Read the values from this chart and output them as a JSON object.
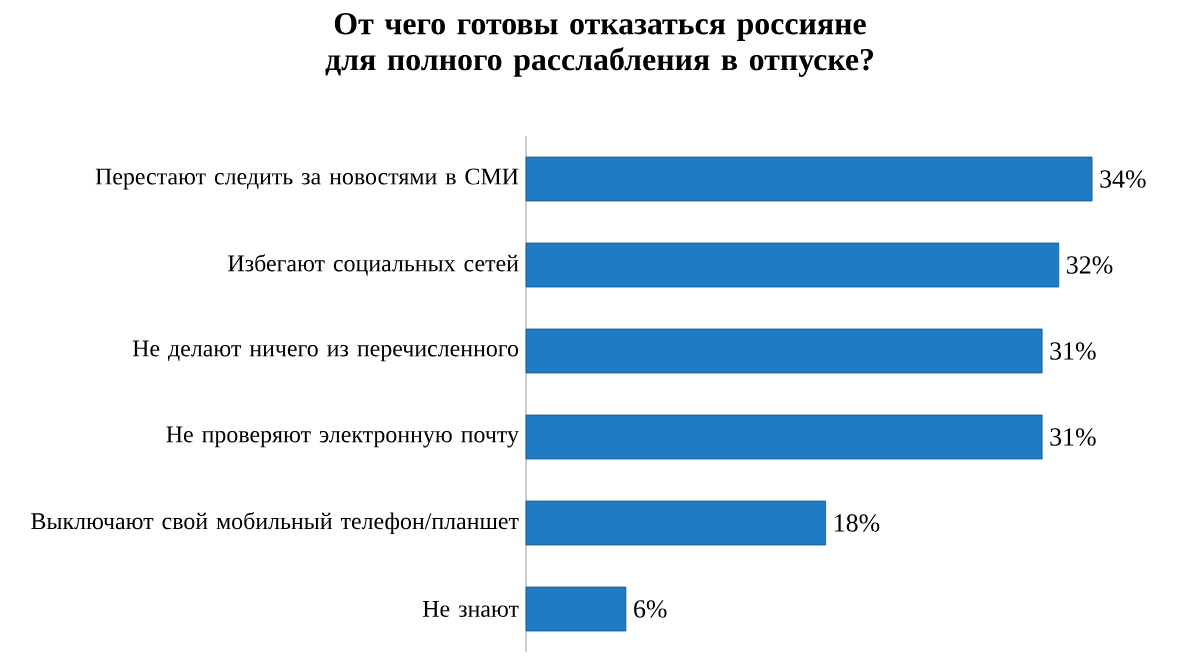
{
  "chart_data": {
    "type": "bar",
    "orientation": "horizontal",
    "title": "От чего готовы отказаться россияне для полного расслабления в отпуске?",
    "categories": [
      "Перестают следить за новостями в СМИ",
      "Избегают социальных сетей",
      "Не делают ничего из перечисленного",
      "Не проверяют электронную почту",
      "Выключают свой мобильный телефон/планшет",
      "Не знают"
    ],
    "values": [
      34,
      32,
      31,
      31,
      18,
      6
    ],
    "value_labels": [
      "34%",
      "32%",
      "31%",
      "31%",
      "18%",
      "6%"
    ],
    "color": "#1f7bc4"
  }
}
